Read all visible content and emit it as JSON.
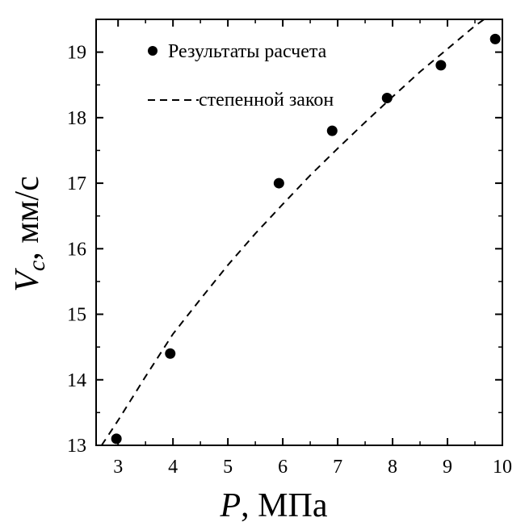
{
  "chart_data": {
    "type": "scatter",
    "xlabel": {
      "var": "P",
      "unit": ", МПа"
    },
    "ylabel": {
      "var": "V",
      "sub": "c",
      "unit": ", мм/с"
    },
    "xlim": [
      2.6,
      10.0
    ],
    "ylim": [
      13,
      19.5
    ],
    "xticks": [
      3,
      4,
      5,
      6,
      7,
      8,
      9,
      10
    ],
    "yticks": [
      13,
      14,
      15,
      16,
      17,
      18,
      19
    ],
    "grid": false,
    "legend_position": "top-left",
    "series": [
      {
        "name": "Результаты расчета",
        "kind": "points",
        "color": "#000000",
        "x": [
          2.97,
          3.95,
          5.93,
          6.9,
          7.9,
          8.88,
          9.87
        ],
        "y": [
          13.1,
          14.4,
          17.0,
          17.8,
          18.3,
          18.8,
          19.2
        ]
      },
      {
        "name": "степенной закон",
        "kind": "dashed-line",
        "color": "#000000",
        "x": [
          2.7,
          3.0,
          3.5,
          4.0,
          4.5,
          5.0,
          5.5,
          6.0,
          6.5,
          7.0,
          7.5,
          8.0,
          8.5,
          9.0,
          9.5,
          9.9
        ],
        "y": [
          13.0,
          13.38,
          14.05,
          14.7,
          15.23,
          15.75,
          16.23,
          16.68,
          17.12,
          17.53,
          17.93,
          18.32,
          18.7,
          19.05,
          19.4,
          19.64
        ]
      }
    ]
  }
}
